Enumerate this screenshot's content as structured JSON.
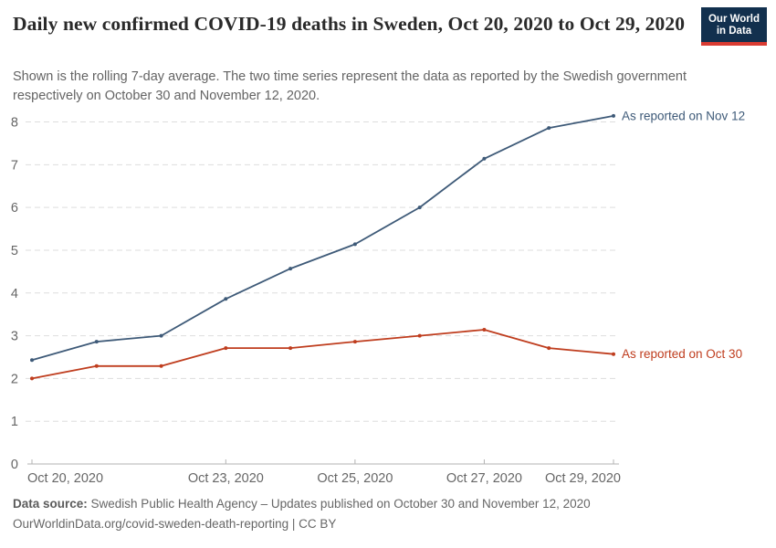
{
  "header": {
    "title": "Daily new confirmed COVID-19 deaths in Sweden, Oct 20, 2020 to Oct 29, 2020",
    "subtitle": "Shown is the rolling 7-day average. The two time series represent the data as reported by the Swedish government respectively on October 30 and November 12, 2020.",
    "logo": {
      "line1": "Our World",
      "line2": "in Data",
      "bg_color": "#12304e",
      "stripe_color": "#d93b32"
    }
  },
  "chart_data": {
    "type": "line",
    "title": "Daily new confirmed COVID-19 deaths in Sweden, Oct 20, 2020 to Oct 29, 2020",
    "xlabel": "",
    "ylabel": "",
    "ylim": [
      0,
      8
    ],
    "yticks": [
      0,
      1,
      2,
      3,
      4,
      5,
      6,
      7,
      8
    ],
    "grid": "horizontal-dashed",
    "legend_position": "line-end-labels",
    "x": [
      "Oct 20, 2020",
      "Oct 21, 2020",
      "Oct 22, 2020",
      "Oct 23, 2020",
      "Oct 24, 2020",
      "Oct 25, 2020",
      "Oct 26, 2020",
      "Oct 27, 2020",
      "Oct 28, 2020",
      "Oct 29, 2020"
    ],
    "x_tick_labels": [
      "Oct 20, 2020",
      "Oct 23, 2020",
      "Oct 25, 2020",
      "Oct 27, 2020",
      "Oct 29, 2020"
    ],
    "x_tick_indices": [
      0,
      3,
      5,
      7,
      9
    ],
    "series": [
      {
        "name": "As reported on Nov 12",
        "color": "#3e5a78",
        "values": [
          2.43,
          2.86,
          3.0,
          3.86,
          4.57,
          5.14,
          6.0,
          7.14,
          7.86,
          8.14
        ]
      },
      {
        "name": "As reported on Oct 30",
        "color": "#bf3d1e",
        "values": [
          2.0,
          2.29,
          2.29,
          2.71,
          2.71,
          2.86,
          3.0,
          3.14,
          2.71,
          2.57
        ]
      }
    ],
    "axis_color": "#b3b3b3",
    "grid_color": "#dddddd",
    "tick_label_color": "#666666"
  },
  "footer": {
    "data_source_label": "Data source:",
    "data_source_text": " Swedish Public Health Agency – Updates published on October 30 and November 12, 2020",
    "link_line": "OurWorldinData.org/covid-sweden-death-reporting | CC BY"
  }
}
